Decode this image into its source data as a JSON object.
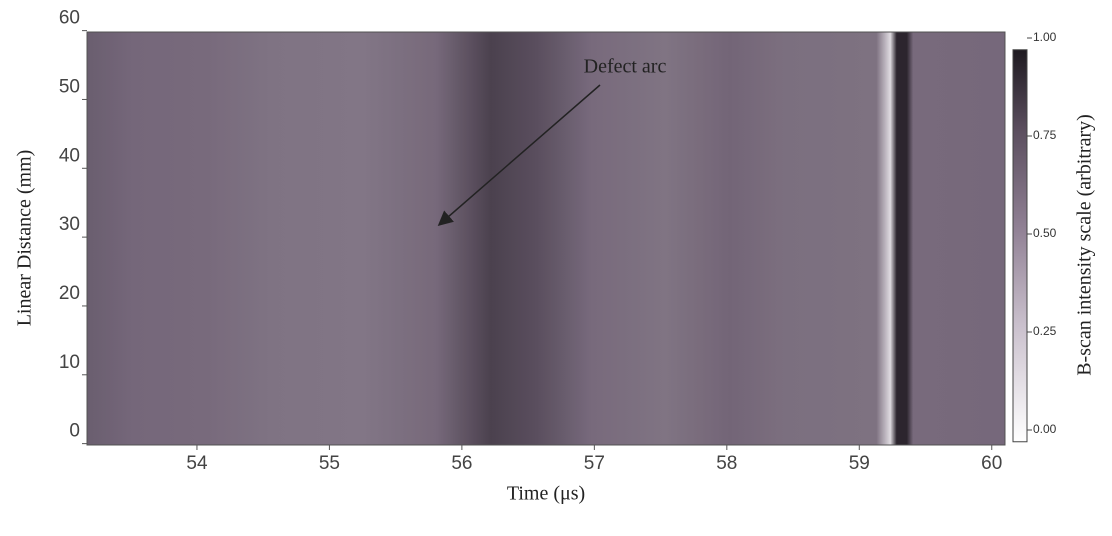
{
  "chart_data": {
    "type": "heatmap",
    "xlabel": "Time (μs)",
    "ylabel": "Linear Distance (mm)",
    "xlim": [
      53.17,
      60.1
    ],
    "xticks": [
      54,
      55,
      56,
      57,
      58,
      59,
      60
    ],
    "ylim": [
      -0.2,
      59.8
    ],
    "yticks": [
      0,
      10,
      20,
      30,
      40,
      50,
      60
    ],
    "colorbar": {
      "label": "B-scan intensity scale (arbitrary)",
      "clim": [
        -0.03,
        0.97
      ],
      "ticks": [
        {
          "value": 0,
          "label": "0.00"
        },
        {
          "value": 0.25,
          "label": "0.25"
        },
        {
          "value": 0.5,
          "label": "0.50"
        },
        {
          "value": 0.75,
          "label": "0.75"
        },
        {
          "value": 1,
          "label": "1.00"
        }
      ]
    },
    "annotation": "Defect arc"
  }
}
